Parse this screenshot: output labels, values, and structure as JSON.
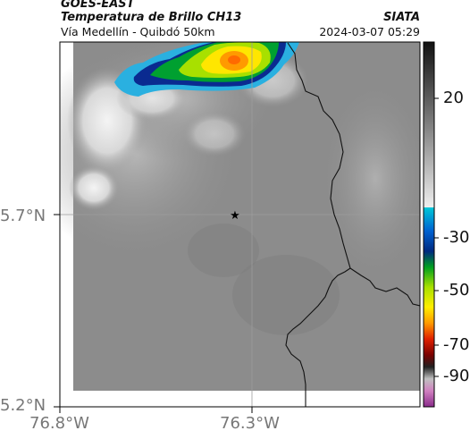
{
  "header": {
    "satellite": "GOES-EAST",
    "product": "Temperatura de Brillo CH13",
    "subtitle": "Vía Medellín - Quibdó 50km",
    "org": "SIATA",
    "timestamp": "2024-03-07 05:29"
  },
  "axes": {
    "lat_labels": [
      "5.7°N",
      "5.2°N"
    ],
    "lon_labels": [
      "76.8°W",
      "76.3°W"
    ]
  },
  "colorbar": {
    "tick_labels": [
      "20",
      "-30",
      "-50",
      "-70",
      "-90"
    ]
  },
  "map": {
    "marker_icon": "star-icon",
    "colors": {
      "background_gray": "#8c8c8c",
      "frame": "#000000",
      "border_line": "#111111",
      "grid": "#9a9a9a"
    }
  }
}
